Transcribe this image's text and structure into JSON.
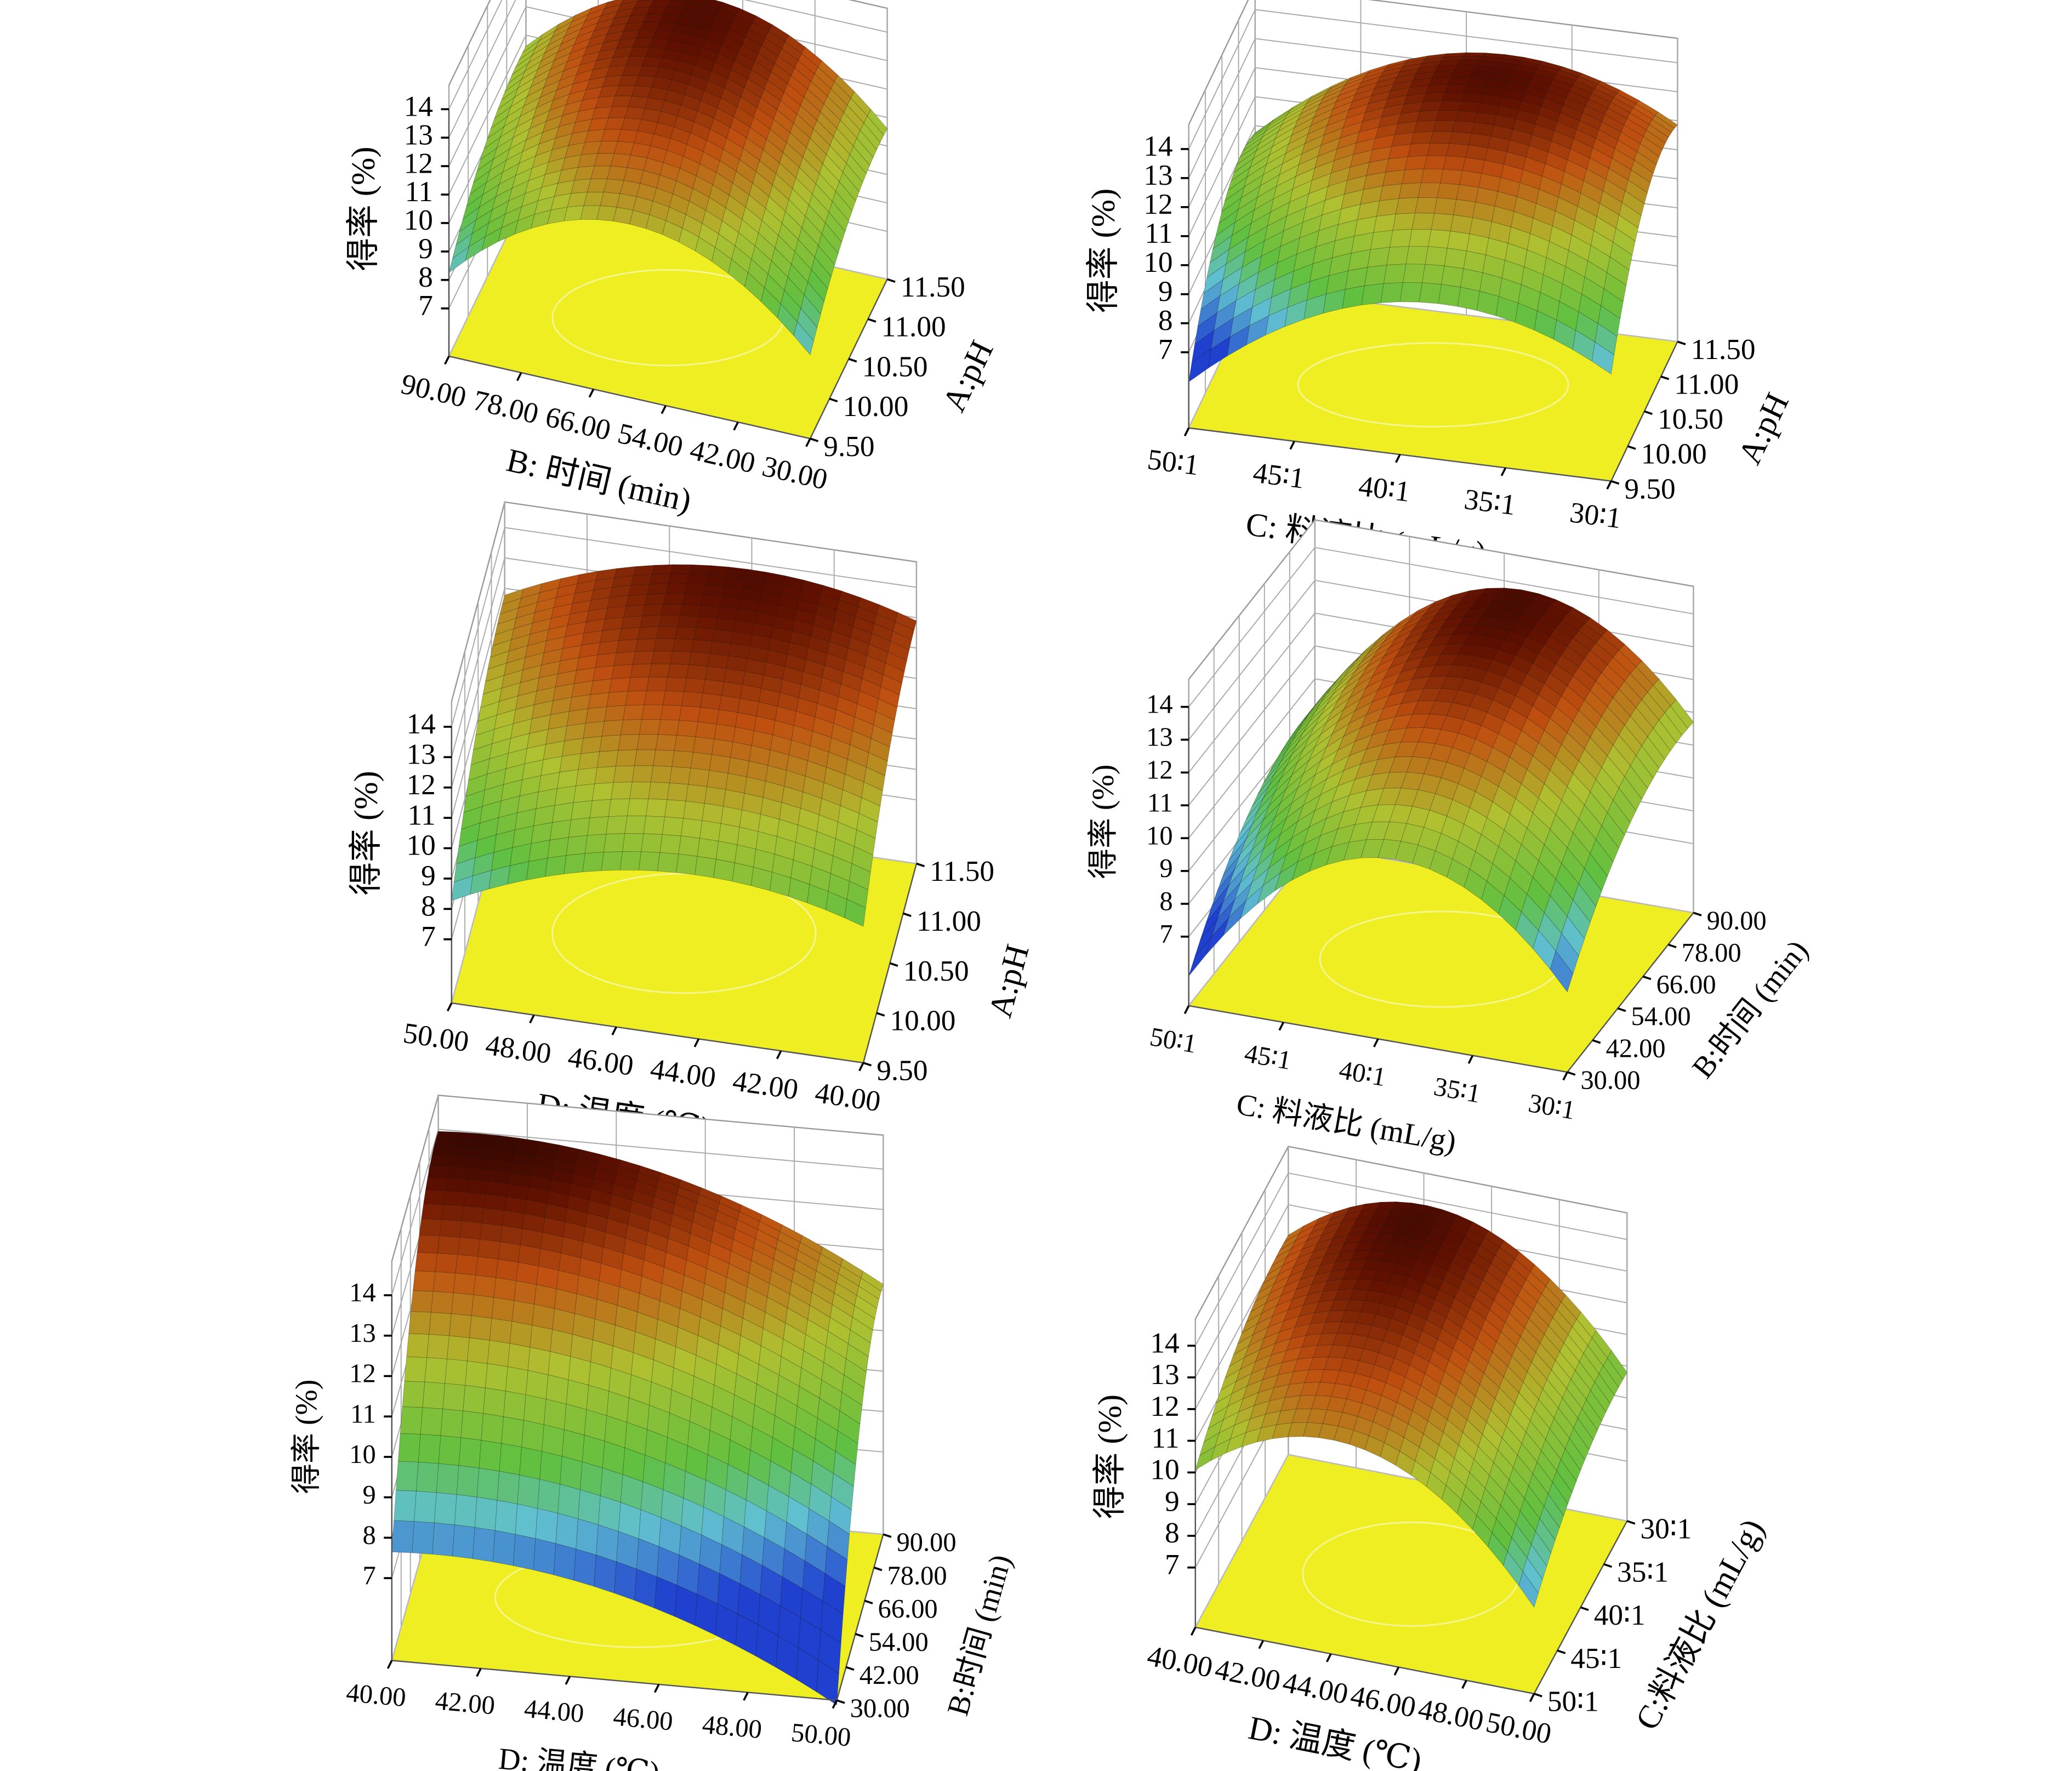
{
  "chart_data": [
    {
      "type": "surface",
      "xlabel": "B: 时间 (min)",
      "ylabel": "A:pH",
      "zlabel": "得率 (%)",
      "xlim": [
        90,
        30
      ],
      "xticks": [
        {
          "value": 90,
          "label": "90.00"
        },
        {
          "value": 78,
          "label": "78.00"
        },
        {
          "value": 66,
          "label": "66.00"
        },
        {
          "value": 54,
          "label": "54.00"
        },
        {
          "value": 42,
          "label": "42.00"
        },
        {
          "value": 30,
          "label": "30.00"
        }
      ],
      "ylim": [
        9.5,
        11.5
      ],
      "yticks": [
        {
          "value": 9.5,
          "label": "9.50"
        },
        {
          "value": 10,
          "label": "10.00"
        },
        {
          "value": 10.5,
          "label": "10.50"
        },
        {
          "value": 11,
          "label": "11.00"
        },
        {
          "value": 11.5,
          "label": "11.50"
        }
      ],
      "zlim": [
        7,
        14
      ],
      "zticks": [
        7,
        8,
        9,
        10,
        11,
        12,
        13,
        14
      ]
    },
    {
      "type": "surface",
      "xlabel": "C: 料液比 (mL/g)",
      "ylabel": "A:pH",
      "zlabel": "得率 (%)",
      "xlim": [
        50,
        30
      ],
      "xticks": [
        {
          "value": 50,
          "label": "50∶1"
        },
        {
          "value": 45,
          "label": "45∶1"
        },
        {
          "value": 40,
          "label": "40∶1"
        },
        {
          "value": 35,
          "label": "35∶1"
        },
        {
          "value": 30,
          "label": "30∶1"
        }
      ],
      "ylim": [
        9.5,
        11.5
      ],
      "yticks": [
        {
          "value": 9.5,
          "label": "9.50"
        },
        {
          "value": 10,
          "label": "10.00"
        },
        {
          "value": 10.5,
          "label": "10.50"
        },
        {
          "value": 11,
          "label": "11.00"
        },
        {
          "value": 11.5,
          "label": "11.50"
        }
      ],
      "zlim": [
        7,
        14
      ],
      "zticks": [
        7,
        8,
        9,
        10,
        11,
        12,
        13,
        14
      ]
    },
    {
      "type": "surface",
      "xlabel": "D: 温度 (℃)",
      "ylabel": "A:pH",
      "zlabel": "得率 (%)",
      "xlim": [
        50,
        40
      ],
      "xticks": [
        {
          "value": 50,
          "label": "50.00"
        },
        {
          "value": 48,
          "label": "48.00"
        },
        {
          "value": 46,
          "label": "46.00"
        },
        {
          "value": 44,
          "label": "44.00"
        },
        {
          "value": 42,
          "label": "42.00"
        },
        {
          "value": 40,
          "label": "40.00"
        }
      ],
      "ylim": [
        9.5,
        11.5
      ],
      "yticks": [
        {
          "value": 9.5,
          "label": "9.50"
        },
        {
          "value": 10,
          "label": "10.00"
        },
        {
          "value": 10.5,
          "label": "10.50"
        },
        {
          "value": 11,
          "label": "11.00"
        },
        {
          "value": 11.5,
          "label": "11.50"
        }
      ],
      "zlim": [
        7,
        14
      ],
      "zticks": [
        7,
        8,
        9,
        10,
        11,
        12,
        13,
        14
      ]
    },
    {
      "type": "surface",
      "xlabel": "C: 料液比 (mL/g)",
      "ylabel": "B:时间 (min)",
      "zlabel": "得率 (%)",
      "xlim": [
        50,
        30
      ],
      "xticks": [
        {
          "value": 50,
          "label": "50∶1"
        },
        {
          "value": 45,
          "label": "45∶1"
        },
        {
          "value": 40,
          "label": "40∶1"
        },
        {
          "value": 35,
          "label": "35∶1"
        },
        {
          "value": 30,
          "label": "30∶1"
        }
      ],
      "ylim": [
        30,
        90
      ],
      "yticks": [
        {
          "value": 30,
          "label": "30.00"
        },
        {
          "value": 42,
          "label": "42.00"
        },
        {
          "value": 54,
          "label": "54.00"
        },
        {
          "value": 66,
          "label": "66.00"
        },
        {
          "value": 78,
          "label": "78.00"
        },
        {
          "value": 90,
          "label": "90.00"
        }
      ],
      "zlim": [
        7,
        14
      ],
      "zticks": [
        7,
        8,
        9,
        10,
        11,
        12,
        13,
        14
      ]
    },
    {
      "type": "surface",
      "xlabel": "D: 温度 (℃)",
      "ylabel": "B:时间 (min)",
      "zlabel": "得率 (%)",
      "xlim": [
        40,
        50
      ],
      "xticks": [
        {
          "value": 40,
          "label": "40.00"
        },
        {
          "value": 42,
          "label": "42.00"
        },
        {
          "value": 44,
          "label": "44.00"
        },
        {
          "value": 46,
          "label": "46.00"
        },
        {
          "value": 48,
          "label": "48.00"
        },
        {
          "value": 50,
          "label": "50.00"
        }
      ],
      "ylim": [
        30,
        90
      ],
      "yticks": [
        {
          "value": 30,
          "label": "30.00"
        },
        {
          "value": 42,
          "label": "42.00"
        },
        {
          "value": 54,
          "label": "54.00"
        },
        {
          "value": 66,
          "label": "66.00"
        },
        {
          "value": 78,
          "label": "78.00"
        },
        {
          "value": 90,
          "label": "90.00"
        }
      ],
      "zlim": [
        7,
        14
      ],
      "zticks": [
        7,
        8,
        9,
        10,
        11,
        12,
        13,
        14
      ]
    },
    {
      "type": "surface",
      "xlabel": "D: 温度 (℃)",
      "ylabel": "C:料液比 (mL/g)",
      "zlabel": "得率 (%)",
      "xlim": [
        40,
        50
      ],
      "xticks": [
        {
          "value": 40,
          "label": "40.00"
        },
        {
          "value": 42,
          "label": "42.00"
        },
        {
          "value": 44,
          "label": "44.00"
        },
        {
          "value": 46,
          "label": "46.00"
        },
        {
          "value": 48,
          "label": "48.00"
        },
        {
          "value": 50,
          "label": "50.00"
        }
      ],
      "ylim": [
        50,
        30
      ],
      "yticks": [
        {
          "value": 50,
          "label": "50∶1"
        },
        {
          "value": 45,
          "label": "45∶1"
        },
        {
          "value": 40,
          "label": "40∶1"
        },
        {
          "value": 35,
          "label": "35∶1"
        },
        {
          "value": 30,
          "label": "30∶1"
        }
      ],
      "zlim": [
        7,
        14
      ],
      "zticks": [
        7,
        8,
        9,
        10,
        11,
        12,
        13,
        14
      ]
    }
  ]
}
